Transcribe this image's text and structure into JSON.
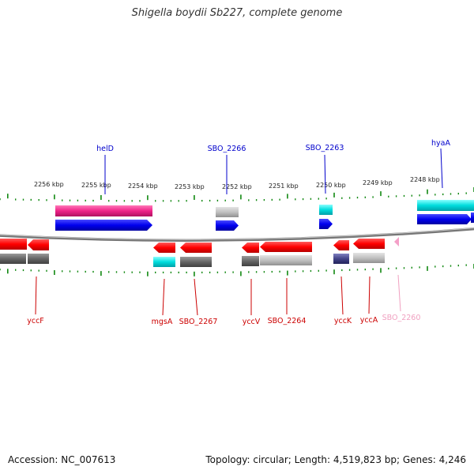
{
  "title": "Shigella boydii Sb227, complete genome",
  "footer": {
    "accession": "Accession: NC_007613",
    "topology": "Topology: circular; Length: 4,519,823 bp; Genes: 4,246"
  },
  "colors": {
    "forward_label": "#0000cc",
    "reverse_label": "#cc0000",
    "faded_label": "#f0a0c0",
    "tick": "#118811",
    "backbone": "#888888"
  },
  "ticks": [
    {
      "label": "2256 kbp"
    },
    {
      "label": "2255 kbp"
    },
    {
      "label": "2254 kbp"
    },
    {
      "label": "2253 kbp"
    },
    {
      "label": "2252 kbp"
    },
    {
      "label": "2251 kbp"
    },
    {
      "label": "2250 kbp"
    },
    {
      "label": "2249 kbp"
    },
    {
      "label": "2248 kbp"
    }
  ],
  "genes_top": [
    {
      "name": "helD",
      "color": "#0000cc"
    },
    {
      "name": "SBO_2266",
      "color": "#0000cc"
    },
    {
      "name": "SBO_2263",
      "color": "#0000cc"
    },
    {
      "name": "hyaA",
      "color": "#0000cc"
    }
  ],
  "genes_bottom": [
    {
      "name": "yccF",
      "color": "#cc0000"
    },
    {
      "name": "mgsA",
      "color": "#cc0000"
    },
    {
      "name": "SBO_2267",
      "color": "#cc0000"
    },
    {
      "name": "yccV",
      "color": "#cc0000"
    },
    {
      "name": "SBO_2264",
      "color": "#cc0000"
    },
    {
      "name": "yccK",
      "color": "#cc0000"
    },
    {
      "name": "yccA",
      "color": "#cc0000"
    },
    {
      "name": "SBO_2260",
      "color": "#f0a0c0"
    }
  ]
}
